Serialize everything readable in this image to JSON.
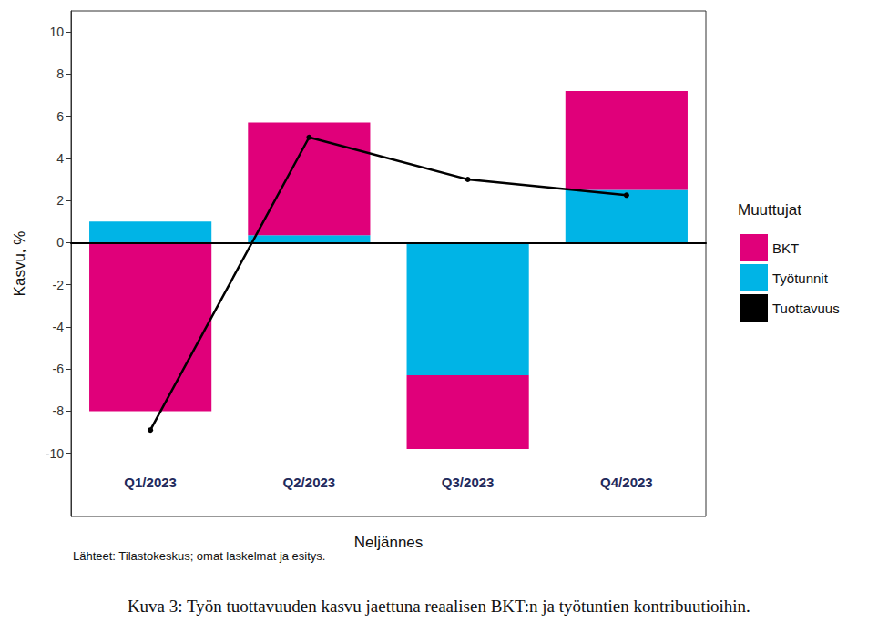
{
  "chart_data": {
    "type": "bar",
    "stacked": true,
    "y_label": "Kasvu, %",
    "x_label": "Neljännes",
    "legend_title": "Muuttujat",
    "legend": "right",
    "source": "Lähteet: Tilastokeskus; omat laskelmat ja esitys.",
    "caption": "Kuva 3: Työn tuottavuuden kasvu jaettuna reaalisen BKT:n ja työtuntien kontribuutioihin.",
    "categories": [
      "Q1/2023",
      "Q2/2023",
      "Q3/2023",
      "Q4/2023"
    ],
    "series": [
      {
        "name": "BKT",
        "type": "bar",
        "color": "#e0007a",
        "values": [
          -8.0,
          5.35,
          -3.5,
          4.7
        ]
      },
      {
        "name": "Työtunnit",
        "type": "bar",
        "color": "#00b4e6",
        "values": [
          1.0,
          0.35,
          -6.3,
          2.5
        ]
      },
      {
        "name": "Tuottavuus",
        "type": "line",
        "color": "#000000",
        "marker": "circle",
        "values": [
          -8.9,
          5.0,
          3.0,
          2.25
        ]
      }
    ],
    "ylim": [
      -13,
      11
    ],
    "yticks": [
      -10,
      -8,
      -6,
      -4,
      -2,
      0,
      2,
      4,
      6,
      8,
      10
    ],
    "grid": false,
    "data_labels": false
  }
}
